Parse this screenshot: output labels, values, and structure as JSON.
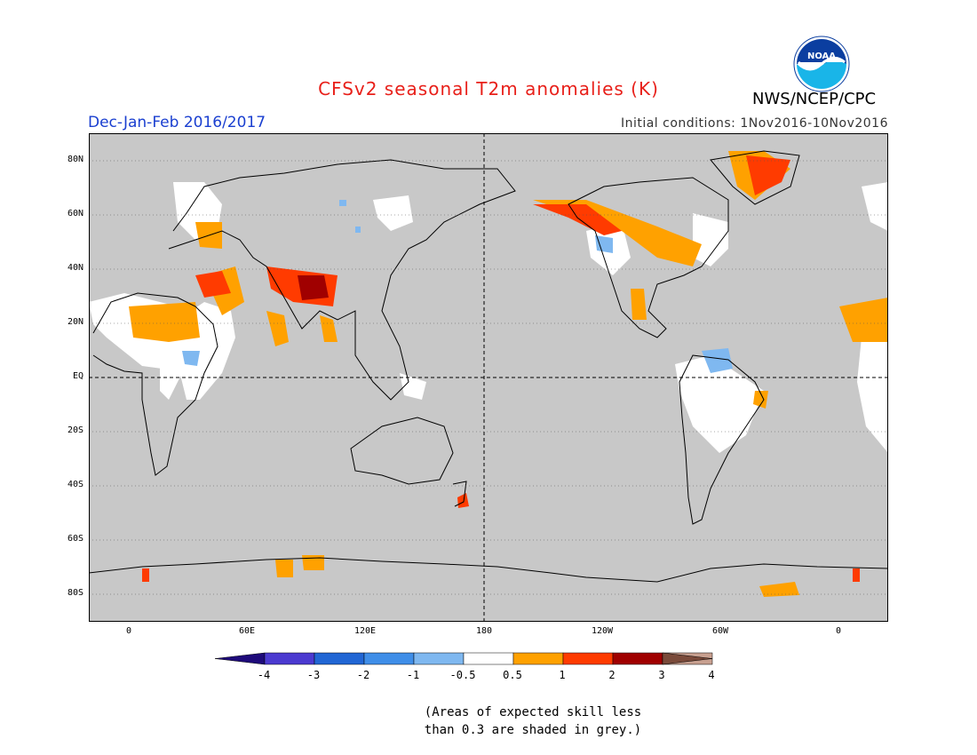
{
  "title": "CFSv2 seasonal T2m anomalies (K)",
  "season": "Dec-Jan-Feb 2016/2017",
  "initial_conditions": "Initial conditions: 1Nov2016-10Nov2016",
  "agency": "NWS/NCEP/CPC",
  "logo_text": "NOAA",
  "lat_labels": [
    "80N",
    "60N",
    "40N",
    "20N",
    "EQ",
    "20S",
    "40S",
    "60S",
    "80S"
  ],
  "lon_labels": [
    "0",
    "60E",
    "120E",
    "180",
    "120W",
    "60W",
    "0"
  ],
  "colorbar": {
    "labels": [
      "-4",
      "-3",
      "-2",
      "-1",
      "-0.5",
      "0.5",
      "1",
      "2",
      "3",
      "4"
    ],
    "colors": [
      "#1e0a7a",
      "#4b3ad0",
      "#2166d4",
      "#3f8ee8",
      "#7fb8f0",
      "#ffffff",
      "#ffa100",
      "#ff3b00",
      "#a00000",
      "#c8a090",
      "#7a4a3a"
    ]
  },
  "note_line1": "(Areas of expected skill less",
  "note_line2": "than 0.3 are shaded in grey.)",
  "colors": {
    "title": "#e8201a",
    "season": "#1a3fd0",
    "no_skill_grey": "#c8c8c8",
    "logo_blue": "#0b3ea0",
    "logo_cyan": "#19b5e8"
  }
}
